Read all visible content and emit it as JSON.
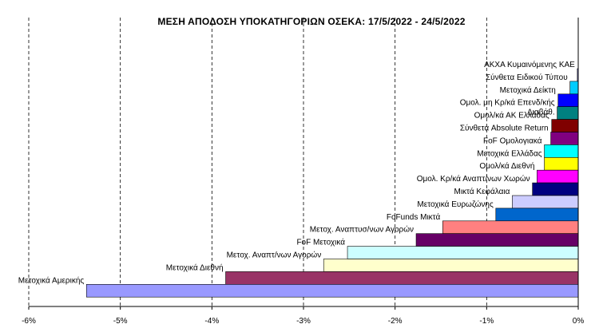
{
  "chart_data": {
    "type": "bar",
    "orientation": "horizontal",
    "title": "ΜΕΣΗ ΑΠΟΔΟΣΗ ΥΠΟΚΑΤΗΓΟΡΙΩΝ  ΟΣΕΚΑ:  17/5/2022  - 24/5/2022",
    "xlabel": "",
    "ylabel": "",
    "xlim": [
      -6,
      0
    ],
    "x_ticks": [
      "-6%",
      "-5%",
      "-4%",
      "-3%",
      "-2%",
      "-1%",
      "0%"
    ],
    "grid": "vertical dashed",
    "legend": "none",
    "categories": [
      {
        "label": "ΑΚΧΑ Κυμαινόμενης ΚΑΕ",
        "value": -0.01,
        "color": "#9999ff"
      },
      {
        "label": "Σύνθετα Ειδικού Τύπου",
        "value": -0.09,
        "color": "#00ccff"
      },
      {
        "label": "Μετοχικά  Δείκτη",
        "value": -0.22,
        "color": "#0000ff"
      },
      {
        "label": "Ομολ. μη Κρ/κά Επενδ/κής Διαβάθ.",
        "value": -0.23,
        "color": "#008080"
      },
      {
        "label": "Ομολ/κά ΑΚ Ελλάδας",
        "value": -0.29,
        "color": "#800000"
      },
      {
        "label": "Σύνθετα Absolute Return",
        "value": -0.3,
        "color": "#800080"
      },
      {
        "label": "FoF Ομολογιακά",
        "value": -0.37,
        "color": "#00ffff"
      },
      {
        "label": "Μετοχικά Ελλάδας",
        "value": -0.37,
        "color": "#ffff00"
      },
      {
        "label": "Ομολ/κά Διεθνή",
        "value": -0.45,
        "color": "#ff00ff"
      },
      {
        "label": "Ομολ. Κρ/κά Αναπτ/νων Χωρών",
        "value": -0.5,
        "color": "#000080"
      },
      {
        "label": "Μικτά Κεφάλαια",
        "value": -0.72,
        "color": "#ccccff"
      },
      {
        "label": "Μετοχικά Ευρωζώνης",
        "value": -0.9,
        "color": "#0066cc"
      },
      {
        "label": "FoFunds Μικτά",
        "value": -1.48,
        "color": "#ff8080"
      },
      {
        "label": "Μετοχ. Αναπτυσ/νων Αγορών",
        "value": -1.77,
        "color": "#660066"
      },
      {
        "label": "FoF Μετοχικά",
        "value": -2.52,
        "color": "#ccffff"
      },
      {
        "label": "Μετοχ. Αναπτ/νων Αγορών",
        "value": -2.78,
        "color": "#ffffcc"
      },
      {
        "label": "Μετοχικά Διεθνή",
        "value": -3.85,
        "color": "#993366"
      },
      {
        "label": "Μετοχικά Αμερικής",
        "value": -5.37,
        "color": "#9999ff"
      }
    ]
  }
}
